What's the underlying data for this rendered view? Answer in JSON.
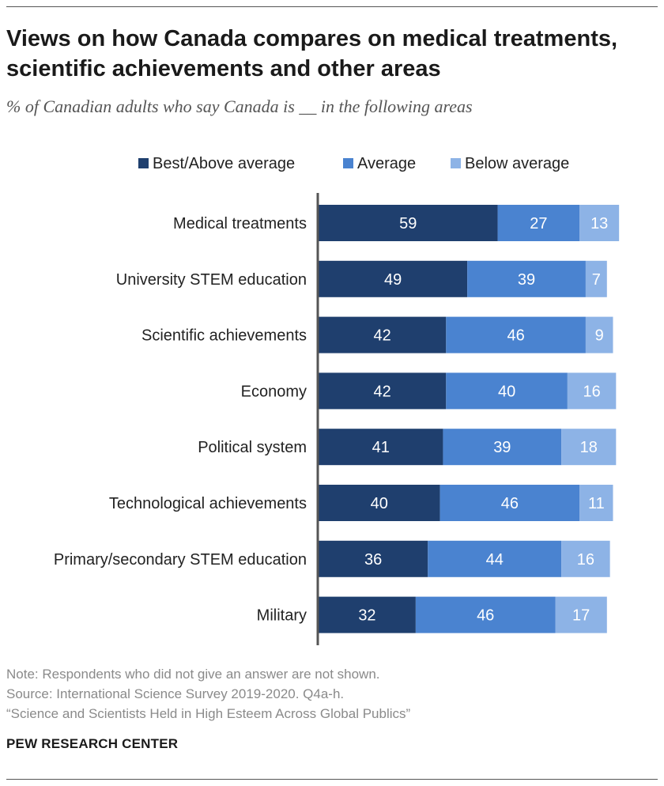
{
  "title": "Views on how Canada compares on medical treatments, scientific achievements and other areas",
  "subtitle": "% of Canadian adults who say Canada is __ in the following areas",
  "colors": {
    "best_above": "#1f3f6e",
    "average": "#4a83d0",
    "below": "#8db3e6",
    "axis": "#555555"
  },
  "chart_data": {
    "type": "bar",
    "orientation": "horizontal",
    "stacked": true,
    "title": "Views on how Canada compares on medical treatments, scientific achievements and other areas",
    "subtitle": "% of Canadian adults who say Canada is __ in the following areas",
    "xlim": [
      0,
      100
    ],
    "legend_position": "top",
    "categories": [
      "Medical treatments",
      "University STEM education",
      "Scientific achievements",
      "Economy",
      "Political system",
      "Technological achievements",
      "Primary/secondary STEM education",
      "Military"
    ],
    "series": [
      {
        "name": "Best/Above average",
        "color": "#1f3f6e",
        "values": [
          59,
          49,
          42,
          42,
          41,
          40,
          36,
          32
        ]
      },
      {
        "name": "Average",
        "color": "#4a83d0",
        "values": [
          27,
          39,
          46,
          40,
          39,
          46,
          44,
          46
        ]
      },
      {
        "name": "Below average",
        "color": "#8db3e6",
        "values": [
          13,
          7,
          9,
          16,
          18,
          11,
          16,
          17
        ]
      }
    ]
  },
  "notes": {
    "note": "Note: Respondents who did not give an answer are not shown.",
    "source": "Source: International Science Survey 2019-2020. Q4a-h.",
    "report": "“Science and Scientists Held in High Esteem Across Global Publics”"
  },
  "brand": "PEW RESEARCH CENTER"
}
